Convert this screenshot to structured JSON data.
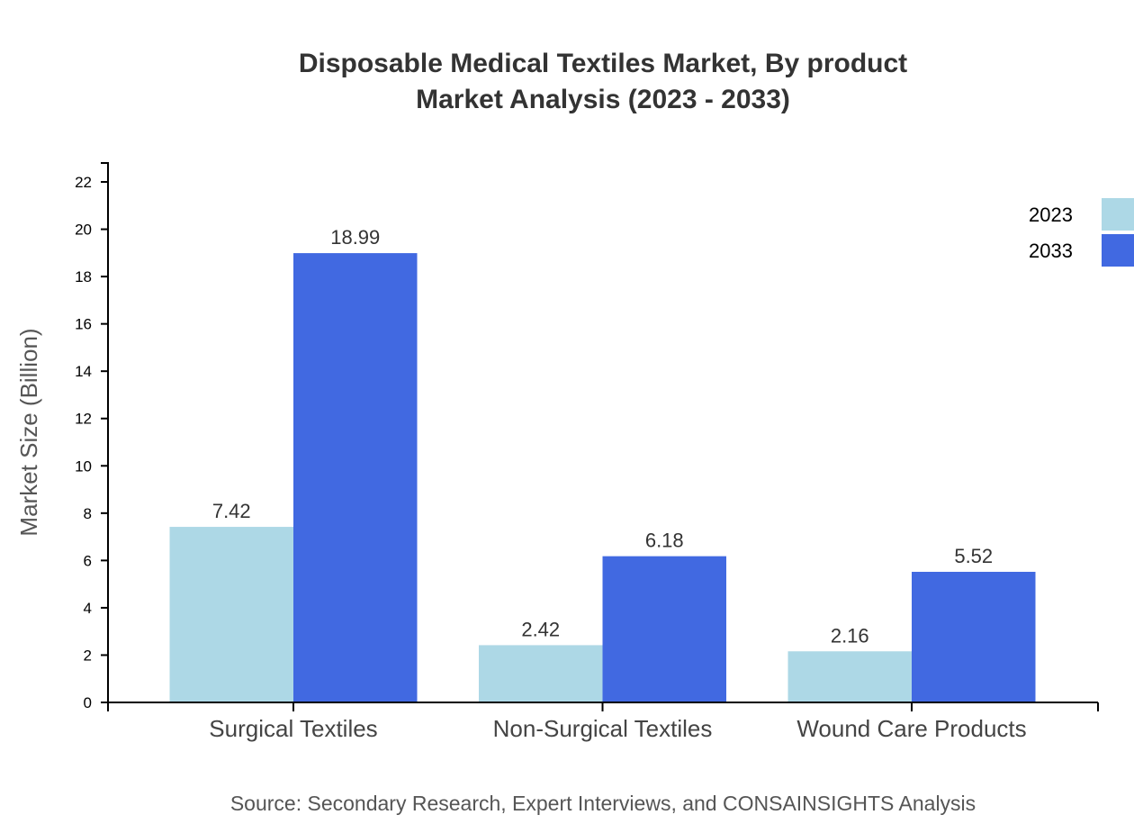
{
  "chart_data": {
    "type": "bar",
    "title": "Disposable Medical Textiles Market, By product",
    "subtitle": "Market Analysis (2023 - 2033)",
    "xlabel": "",
    "ylabel": "Market Size (Billion)",
    "categories": [
      "Surgical Textiles",
      "Non-Surgical Textiles",
      "Wound Care Products"
    ],
    "series": [
      {
        "name": "2023",
        "values": [
          7.42,
          2.42,
          2.16
        ],
        "color": "#add8e6"
      },
      {
        "name": "2033",
        "values": [
          18.99,
          6.18,
          5.52
        ],
        "color": "#4169e1"
      }
    ],
    "ylim": [
      0,
      22.8
    ],
    "yticks": [
      0,
      2,
      4,
      6,
      8,
      10,
      12,
      14,
      16,
      18,
      20,
      22
    ],
    "grid": false,
    "legend": "top-right",
    "source": "Source: Secondary Research, Expert Interviews, and CONSAINSIGHTS Analysis"
  }
}
